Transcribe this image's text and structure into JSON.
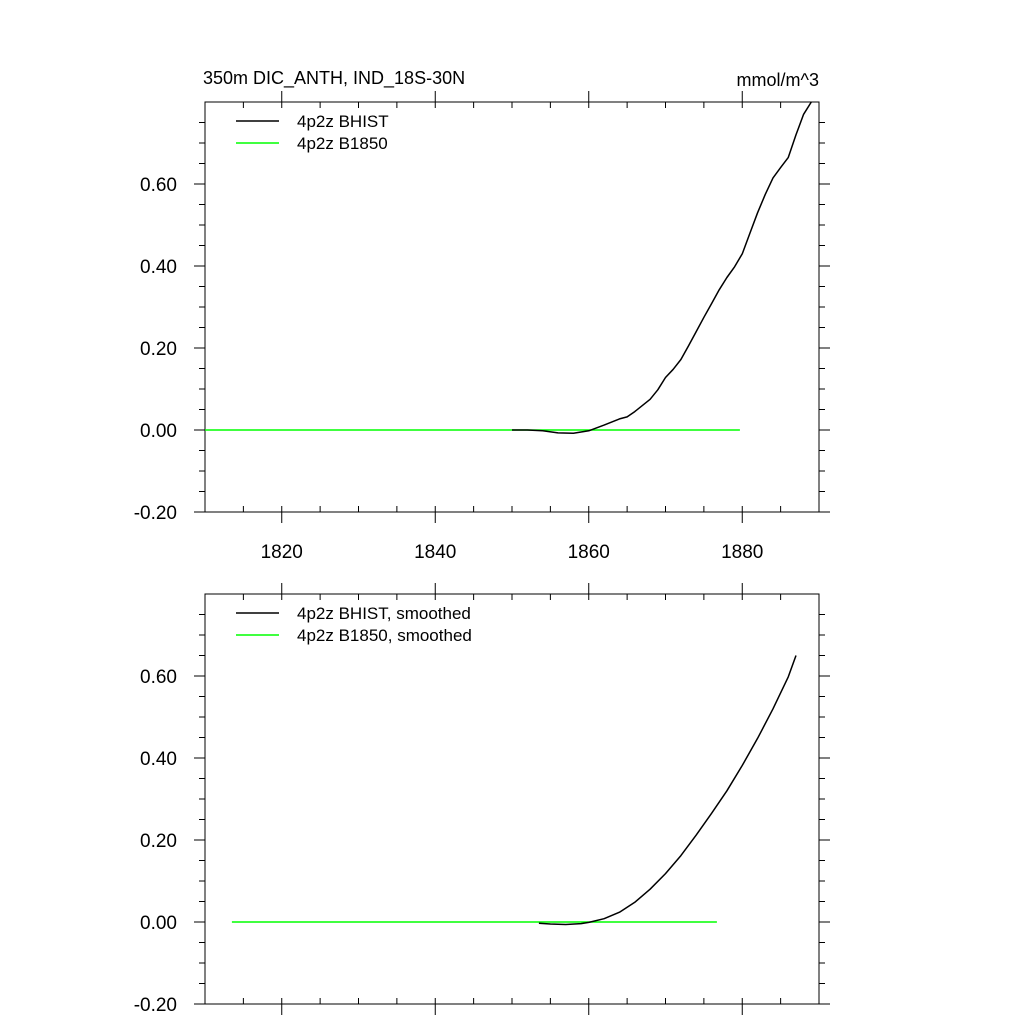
{
  "figure": {
    "title_left": "350m DIC_ANTH, IND_18S-30N",
    "title_right": "mmol/m^3"
  },
  "chart_data": [
    {
      "type": "line",
      "panel": "top",
      "xlim": [
        1810,
        1890
      ],
      "ylim": [
        -0.2,
        0.8
      ],
      "xticks": [
        1820,
        1840,
        1860,
        1880
      ],
      "xtick_labels": [
        "1820",
        "1840",
        "1860",
        "1880"
      ],
      "yticks": [
        -0.2,
        0.0,
        0.2,
        0.4,
        0.6
      ],
      "ytick_labels": [
        "-0.20",
        "0.00",
        "0.20",
        "0.40",
        "0.60"
      ],
      "grid": false,
      "legend_position": "top-left",
      "series": [
        {
          "name": "4p2z BHIST",
          "color": "#000000",
          "x": [
            1850,
            1852,
            1854,
            1856,
            1858,
            1860,
            1862,
            1864,
            1865,
            1866,
            1868,
            1869,
            1870,
            1871,
            1872,
            1873,
            1874,
            1875,
            1876,
            1877,
            1878,
            1879,
            1880,
            1881,
            1882,
            1883,
            1884,
            1885,
            1886,
            1887,
            1888,
            1889
          ],
          "y": [
            0.0,
            0.0,
            -0.002,
            -0.007,
            -0.008,
            -0.002,
            0.012,
            0.027,
            0.032,
            0.045,
            0.075,
            0.098,
            0.128,
            0.148,
            0.172,
            0.205,
            0.24,
            0.275,
            0.308,
            0.342,
            0.372,
            0.398,
            0.43,
            0.48,
            0.53,
            0.575,
            0.615,
            0.64,
            0.665,
            0.72,
            0.77,
            0.8
          ]
        },
        {
          "name": "4p2z B1850",
          "color": "#00ff00",
          "x": [
            1810,
            1879.7
          ],
          "y": [
            0.0,
            0.0
          ]
        }
      ]
    },
    {
      "type": "line",
      "panel": "bottom",
      "xlim": [
        1810,
        1890
      ],
      "ylim": [
        -0.2,
        0.8
      ],
      "xticks": [
        1820,
        1840,
        1860,
        1880
      ],
      "yticks": [
        -0.2,
        0.0,
        0.2,
        0.4,
        0.6
      ],
      "ytick_labels": [
        "-0.20",
        "0.00",
        "0.20",
        "0.40",
        "0.60"
      ],
      "grid": false,
      "legend_position": "top-left",
      "series": [
        {
          "name": "4p2z BHIST, smoothed",
          "color": "#000000",
          "x": [
            1853.5,
            1855,
            1857,
            1859,
            1860,
            1862,
            1864,
            1866,
            1868,
            1870,
            1872,
            1874,
            1876,
            1878,
            1880,
            1882,
            1884,
            1886,
            1887
          ],
          "y": [
            -0.003,
            -0.005,
            -0.006,
            -0.004,
            -0.001,
            0.008,
            0.024,
            0.048,
            0.08,
            0.118,
            0.162,
            0.212,
            0.265,
            0.32,
            0.382,
            0.448,
            0.52,
            0.598,
            0.65
          ]
        },
        {
          "name": "4p2z B1850, smoothed",
          "color": "#00ff00",
          "x": [
            1813.5,
            1876.7
          ],
          "y": [
            0.0,
            0.0
          ]
        }
      ]
    }
  ]
}
